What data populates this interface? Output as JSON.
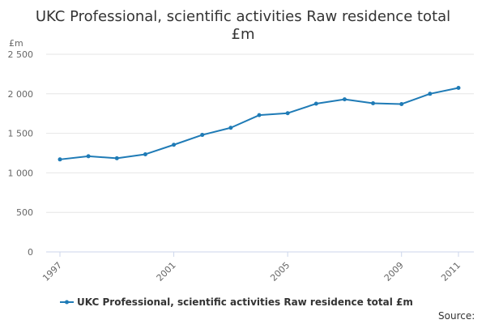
{
  "chart_data": {
    "type": "line",
    "title_line1": "UKC Professional, scientific activities Raw residence total",
    "title_line2": "£m",
    "ylabel": "£m",
    "ylim": [
      0,
      2500
    ],
    "y_ticks": [
      0,
      500,
      1000,
      1500,
      2000,
      2500
    ],
    "y_tick_labels": [
      "0",
      "500",
      "1 000",
      "1 500",
      "2 000",
      "2 500"
    ],
    "xlim": [
      1997,
      2011
    ],
    "x_tick_labels": [
      "1997",
      "2001",
      "2005",
      "2009",
      "2011"
    ],
    "grid": true,
    "legend_position": "bottom",
    "series": [
      {
        "name": "UKC Professional, scientific activities Raw residence total £m",
        "color": "#1f7bb6",
        "x": [
          1997,
          1998,
          1999,
          2000,
          2001,
          2002,
          2003,
          2004,
          2005,
          2006,
          2007,
          2008,
          2009,
          2010,
          2011
        ],
        "values": [
          1170,
          1210,
          1185,
          1235,
          1355,
          1480,
          1570,
          1730,
          1755,
          1875,
          1930,
          1880,
          1870,
          2000,
          2075
        ]
      }
    ],
    "source_label": "Source:"
  }
}
